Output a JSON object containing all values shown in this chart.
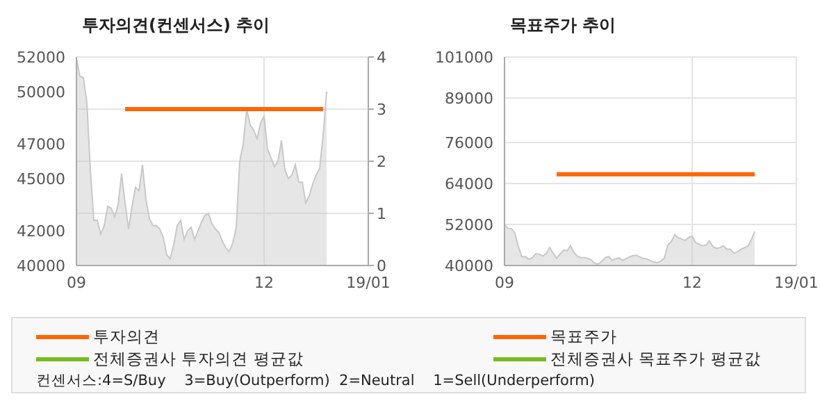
{
  "chart_data": [
    {
      "type": "area",
      "title": "투자의견(컨센서스) 추이",
      "categories": [
        "09",
        null,
        null,
        null,
        null,
        null,
        null,
        null,
        null,
        null,
        null,
        null,
        null,
        null,
        null,
        null,
        null,
        null,
        null,
        null,
        null,
        null,
        null,
        null,
        null,
        null,
        null,
        null,
        null,
        null,
        null,
        null,
        null,
        null,
        null,
        null,
        null,
        null,
        null,
        null,
        null,
        null,
        null,
        null,
        null,
        null,
        null,
        null,
        null,
        null,
        null,
        null,
        null,
        null,
        "12",
        null,
        null,
        null,
        null,
        null,
        null,
        null,
        null,
        null,
        null,
        null,
        null,
        null,
        null,
        null,
        null,
        null,
        null,
        null,
        null,
        null,
        null,
        null,
        null,
        null,
        null,
        null,
        null,
        null,
        "19/01"
      ],
      "series": [
        {
          "color": "#c8c8c8",
          "values": [
            51900,
            50900,
            50800,
            49400,
            45500,
            42600,
            42600,
            41800,
            42300,
            43400,
            43300,
            42800,
            43500,
            45300,
            43600,
            42100,
            43400,
            44500,
            44300,
            45800,
            43800,
            42700,
            42300,
            42300,
            42100,
            41600,
            40600,
            40400,
            41200,
            42300,
            42600,
            41500,
            42000,
            42200,
            41500,
            42000,
            42500,
            42900,
            43000,
            42400,
            42100,
            41900,
            41400,
            41000,
            40800,
            41300,
            42200,
            46000,
            47000,
            49000,
            48100,
            47800,
            47300,
            48200,
            48600,
            46700,
            46200,
            45700,
            46000,
            47200,
            45500,
            45000,
            45200,
            45800,
            44800,
            44800,
            43600,
            44000,
            44700,
            45200,
            45600,
            47500,
            50000,
            null,
            null,
            null,
            null,
            null,
            null,
            null,
            null,
            null,
            null,
            null,
            null
          ]
        },
        {
          "type": "line",
          "name": "투자의견",
          "color": "#ff6600",
          "axis": "y2",
          "values": [
            null,
            null,
            null,
            null,
            null,
            null,
            null,
            null,
            null,
            null,
            null,
            null,
            null,
            null,
            3,
            3,
            3,
            3,
            3,
            3,
            3,
            3,
            3,
            3,
            3,
            3,
            3,
            3,
            3,
            3,
            3,
            3,
            3,
            3,
            3,
            3,
            3,
            3,
            3,
            3,
            3,
            3,
            3,
            3,
            3,
            3,
            3,
            3,
            3,
            3,
            3,
            3,
            3,
            3,
            3,
            3,
            3,
            3,
            3,
            3,
            3,
            3,
            3,
            3,
            3,
            3,
            3,
            3,
            3,
            3,
            3,
            3,
            null,
            null,
            null,
            null,
            null,
            null,
            null,
            null,
            null,
            null,
            null,
            null,
            null
          ]
        },
        {
          "type": "line",
          "name": "전체증권사 투자의견 평균값",
          "color": "#77bb22",
          "axis": "y2",
          "values": [
            null,
            null,
            null,
            null,
            null,
            null,
            null,
            null,
            null,
            null,
            null,
            null,
            null,
            null,
            null,
            null,
            null,
            null,
            null,
            null,
            null,
            null,
            null,
            null,
            null,
            null,
            null,
            null,
            null,
            null,
            null,
            null,
            null,
            null,
            null,
            null,
            null,
            null,
            null,
            null,
            null,
            null,
            null,
            null,
            null,
            null,
            null,
            null,
            null,
            null,
            null,
            null,
            null,
            null,
            null,
            null,
            null,
            null,
            null,
            null,
            null,
            null,
            null,
            null,
            null,
            null,
            null,
            null,
            null,
            null,
            null,
            null,
            null,
            null,
            null,
            null,
            null,
            null,
            null,
            null,
            null,
            null,
            null,
            null,
            null
          ]
        }
      ],
      "ylim": [
        40000,
        52000
      ],
      "yticks": [
        40000,
        42000,
        45000,
        47000,
        50000,
        52000
      ],
      "y2lim": [
        0,
        4
      ],
      "y2ticks": [
        0,
        1,
        2,
        3,
        4
      ],
      "grid": true,
      "legend": "bottom",
      "annotations": [
        "컨센서스:4=S/Buy    3=Buy(Outperform)  2=Neutral    1=Sell(Underperform)"
      ]
    },
    {
      "type": "area",
      "title": "목표주가 추이",
      "categories": [
        "09",
        null,
        null,
        null,
        null,
        null,
        null,
        null,
        null,
        null,
        null,
        null,
        null,
        null,
        null,
        null,
        null,
        null,
        null,
        null,
        null,
        null,
        null,
        null,
        null,
        null,
        null,
        null,
        null,
        null,
        null,
        null,
        null,
        null,
        null,
        null,
        null,
        null,
        null,
        null,
        null,
        null,
        null,
        null,
        null,
        null,
        null,
        null,
        null,
        null,
        null,
        null,
        null,
        null,
        "12",
        null,
        null,
        null,
        null,
        null,
        null,
        null,
        null,
        null,
        null,
        null,
        null,
        null,
        null,
        null,
        null,
        null,
        null,
        null,
        null,
        null,
        null,
        null,
        null,
        null,
        null,
        null,
        null,
        null,
        "19/01"
      ],
      "series": [
        {
          "color": "#c8c8c8",
          "values": [
            51900,
            50900,
            50800,
            49400,
            45500,
            42600,
            42600,
            41800,
            42300,
            43400,
            43300,
            42800,
            43500,
            45300,
            43600,
            42100,
            43400,
            44500,
            44300,
            45800,
            43800,
            42700,
            42300,
            42300,
            42100,
            41600,
            40600,
            40400,
            41200,
            42300,
            42600,
            41500,
            42000,
            42200,
            41500,
            42000,
            42500,
            42900,
            43000,
            42400,
            42100,
            41900,
            41400,
            41000,
            40800,
            41300,
            42200,
            46000,
            47000,
            49000,
            48100,
            47800,
            47300,
            48200,
            48600,
            46700,
            46200,
            45700,
            46000,
            47200,
            45500,
            45000,
            45200,
            45800,
            44800,
            44800,
            43600,
            44000,
            44700,
            45200,
            45600,
            47500,
            50000,
            null,
            null,
            null,
            null,
            null,
            null,
            null,
            null,
            null,
            null,
            null,
            null
          ]
        },
        {
          "type": "line",
          "name": "목표주가",
          "color": "#ff6600",
          "values": [
            null,
            null,
            null,
            null,
            null,
            null,
            null,
            null,
            null,
            null,
            null,
            null,
            null,
            null,
            null,
            66700,
            66700,
            66700,
            66700,
            66700,
            66700,
            66700,
            66700,
            66700,
            66700,
            66700,
            66700,
            66700,
            66700,
            66700,
            66700,
            66700,
            66700,
            66700,
            66700,
            66700,
            66700,
            66700,
            66700,
            66700,
            66700,
            66700,
            66700,
            66700,
            66700,
            66700,
            66700,
            66700,
            66700,
            66700,
            66700,
            66700,
            66700,
            66700,
            66700,
            66700,
            66700,
            66700,
            66700,
            66700,
            66700,
            66700,
            66700,
            66700,
            66700,
            66700,
            66700,
            66700,
            66700,
            66700,
            66700,
            66700,
            66700,
            null,
            null,
            null,
            null,
            null,
            null,
            null,
            null,
            null,
            null,
            null,
            null
          ]
        },
        {
          "type": "line",
          "name": "전체증권사 목표주가 평균값",
          "color": "#77bb22",
          "values": [
            null,
            null,
            null,
            null,
            null,
            null,
            null,
            null,
            null,
            null,
            null,
            null,
            null,
            null,
            null,
            null,
            null,
            null,
            null,
            null,
            null,
            null,
            null,
            null,
            null,
            null,
            null,
            null,
            null,
            null,
            null,
            null,
            null,
            null,
            null,
            null,
            null,
            null,
            null,
            null,
            null,
            null,
            null,
            null,
            null,
            null,
            null,
            null,
            null,
            null,
            null,
            null,
            null,
            null,
            null,
            null,
            null,
            null,
            null,
            null,
            null,
            null,
            null,
            null,
            null,
            null,
            null,
            null,
            null,
            null,
            null,
            null,
            null,
            null,
            null,
            null,
            null,
            null,
            null,
            null,
            null,
            null,
            null,
            null,
            null
          ]
        }
      ],
      "ylim": [
        40000,
        101000
      ],
      "yticks": [
        40000,
        52000,
        64000,
        76000,
        89000,
        101000
      ],
      "grid": true,
      "legend": "bottom"
    }
  ]
}
